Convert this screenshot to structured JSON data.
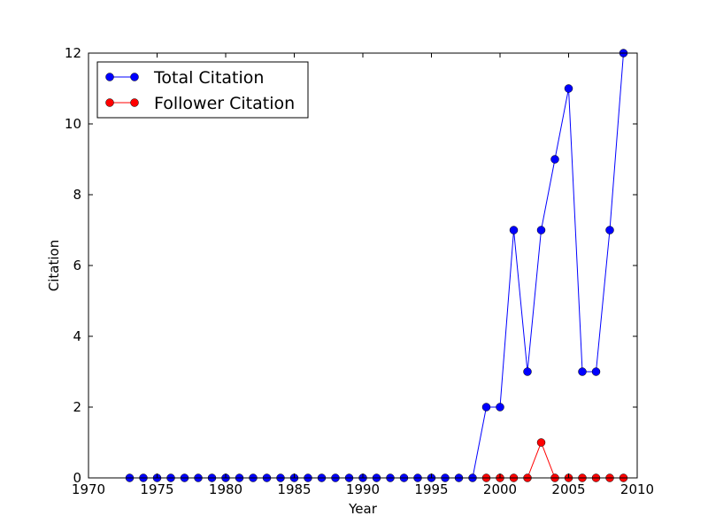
{
  "chart_data": {
    "type": "line",
    "title": "",
    "xlabel": "Year",
    "ylabel": "Citation",
    "xlim": [
      1970,
      2010
    ],
    "ylim": [
      0,
      12
    ],
    "xticks": [
      1970,
      1975,
      1980,
      1985,
      1990,
      1995,
      2000,
      2005,
      2010
    ],
    "yticks": [
      0,
      2,
      4,
      6,
      8,
      10,
      12
    ],
    "grid": false,
    "legend_position": "top-left",
    "series": [
      {
        "name": "Total Citation",
        "color": "#0000ff",
        "x": [
          1973,
          1974,
          1975,
          1976,
          1977,
          1978,
          1979,
          1980,
          1981,
          1982,
          1983,
          1984,
          1985,
          1986,
          1987,
          1988,
          1989,
          1990,
          1991,
          1992,
          1993,
          1994,
          1995,
          1996,
          1997,
          1998,
          1999,
          2000,
          2001,
          2002,
          2003,
          2004,
          2005,
          2006,
          2007,
          2008,
          2009
        ],
        "values": [
          0,
          0,
          0,
          0,
          0,
          0,
          0,
          0,
          0,
          0,
          0,
          0,
          0,
          0,
          0,
          0,
          0,
          0,
          0,
          0,
          0,
          0,
          0,
          0,
          0,
          0,
          2,
          2,
          7,
          3,
          7,
          9,
          11,
          3,
          3,
          7,
          12
        ]
      },
      {
        "name": "Follower Citation",
        "color": "#ff0000",
        "x": [
          1999,
          2000,
          2001,
          2002,
          2003,
          2004,
          2005,
          2006,
          2007,
          2008,
          2009
        ],
        "values": [
          0,
          0,
          0,
          0,
          1,
          0,
          0,
          0,
          0,
          0,
          0
        ]
      }
    ]
  }
}
